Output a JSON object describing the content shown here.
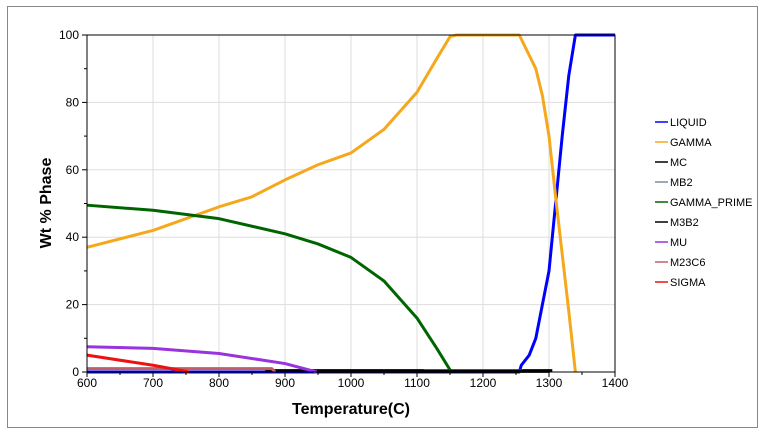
{
  "chart_data": {
    "type": "line",
    "title": "",
    "xlabel": "Temperature(C)",
    "ylabel": "Wt % Phase",
    "xlim": [
      600,
      1400
    ],
    "ylim": [
      0,
      100
    ],
    "xticks": [
      600,
      700,
      800,
      900,
      1000,
      1100,
      1200,
      1300,
      1400
    ],
    "yticks": [
      0,
      20,
      40,
      60,
      80,
      100
    ],
    "grid": true,
    "legend_position": "right",
    "series": [
      {
        "name": "LIQUID",
        "color": "#0000ff",
        "x": [
          600,
          1255,
          1258,
          1270,
          1280,
          1290,
          1300,
          1310,
          1320,
          1330,
          1340,
          1400
        ],
        "y": [
          0,
          0,
          2,
          5,
          10,
          20,
          30,
          50,
          70,
          88,
          100,
          100
        ]
      },
      {
        "name": "GAMMA",
        "color": "#f5a81c",
        "x": [
          600,
          700,
          800,
          850,
          900,
          950,
          1000,
          1050,
          1100,
          1130,
          1150,
          1160,
          1255,
          1265,
          1280,
          1290,
          1300,
          1310,
          1320,
          1330,
          1340
        ],
        "y": [
          37,
          42,
          49,
          52,
          57,
          61.5,
          65,
          72,
          83,
          93,
          99.5,
          100,
          100,
          96,
          90,
          82,
          70,
          52,
          35,
          18,
          0
        ]
      },
      {
        "name": "MC",
        "color": "#000000",
        "x": [
          870,
          1305
        ],
        "y": [
          0.4,
          0.4
        ]
      },
      {
        "name": "MB2",
        "color": "#7f8c99",
        "x": [
          1110,
          1260
        ],
        "y": [
          0.3,
          0.3
        ]
      },
      {
        "name": "GAMMA_PRIME",
        "color": "#006400",
        "x": [
          600,
          700,
          800,
          900,
          950,
          1000,
          1050,
          1100,
          1130,
          1152
        ],
        "y": [
          49.5,
          48,
          45.5,
          41,
          38,
          34,
          27,
          16,
          7,
          0
        ]
      },
      {
        "name": "M3B2",
        "color": "#000000",
        "x": [
          950,
          1300
        ],
        "y": [
          0.2,
          0.2
        ]
      },
      {
        "name": "MU",
        "color": "#9933dd",
        "x": [
          600,
          700,
          800,
          900,
          948
        ],
        "y": [
          7.5,
          7,
          5.5,
          2.5,
          0
        ]
      },
      {
        "name": "M23C6",
        "color": "#c06060",
        "x": [
          600,
          880,
          885
        ],
        "y": [
          1,
          1,
          0
        ]
      },
      {
        "name": "SIGMA",
        "color": "#ee1111",
        "x": [
          600,
          700,
          755
        ],
        "y": [
          5,
          2,
          0
        ]
      }
    ]
  }
}
